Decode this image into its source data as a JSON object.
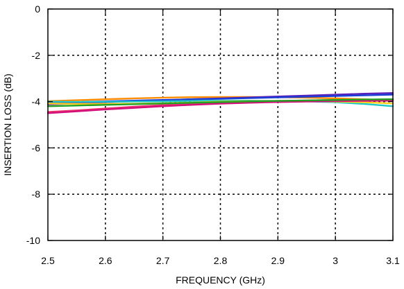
{
  "chart_data": {
    "type": "line",
    "title": "",
    "xlabel": "FREQUENCY (GHz)",
    "ylabel": "INSERTION LOSS  (dB)",
    "xlim": [
      2.5,
      3.1
    ],
    "ylim": [
      -10,
      0
    ],
    "x_ticks": [
      2.5,
      2.6,
      2.7,
      2.8,
      2.9,
      3.0,
      3.1
    ],
    "x_tick_labels": [
      "2.5",
      "2.6",
      "2.7",
      "2.8",
      "2.9",
      "3",
      "3.1"
    ],
    "y_ticks": [
      0,
      -2,
      -4,
      -6,
      -8,
      -10
    ],
    "y_tick_labels": [
      "0",
      "-2",
      "-4",
      "-6",
      "-8",
      "-10"
    ],
    "grid": true,
    "legend": "none",
    "x": [
      2.5,
      2.55,
      2.6,
      2.65,
      2.7,
      2.75,
      2.8,
      2.85,
      2.9,
      2.95,
      3.0,
      3.05,
      3.1
    ],
    "series": [
      {
        "color": "#ff8c00",
        "values": [
          -3.98,
          -3.94,
          -3.9,
          -3.86,
          -3.83,
          -3.81,
          -3.8,
          -3.8,
          -3.81,
          -3.83,
          -3.86,
          -3.9,
          -3.95
        ]
      },
      {
        "color": "#5a1fb8",
        "values": [
          -4.12,
          -4.08,
          -4.03,
          -3.98,
          -3.94,
          -3.9,
          -3.86,
          -3.82,
          -3.78,
          -3.74,
          -3.7,
          -3.66,
          -3.63
        ]
      },
      {
        "color": "#1a3fd6",
        "values": [
          -4.05,
          -4.02,
          -3.99,
          -3.96,
          -3.93,
          -3.9,
          -3.88,
          -3.85,
          -3.82,
          -3.79,
          -3.76,
          -3.73,
          -3.7
        ]
      },
      {
        "color": "#1ec8c8",
        "values": [
          -4.0,
          -4.01,
          -4.01,
          -4.0,
          -3.99,
          -3.97,
          -3.96,
          -3.96,
          -3.97,
          -3.99,
          -4.03,
          -4.1,
          -4.2
        ]
      },
      {
        "color": "#ffd21a",
        "values": [
          -4.08,
          -4.1,
          -4.1,
          -4.09,
          -4.07,
          -4.04,
          -4.0,
          -3.98,
          -3.97,
          -3.98,
          -4.0,
          -4.03,
          -4.08
        ]
      },
      {
        "color": "#e8336b",
        "values": [
          -4.45,
          -4.38,
          -4.3,
          -4.22,
          -4.15,
          -4.09,
          -4.04,
          -4.0,
          -3.97,
          -3.95,
          -3.93,
          -3.92,
          -3.9
        ]
      },
      {
        "color": "#d4107a",
        "values": [
          -4.5,
          -4.42,
          -4.34,
          -4.27,
          -4.2,
          -4.14,
          -4.09,
          -4.05,
          -4.02,
          -4.0,
          -3.98,
          -3.97,
          -3.96
        ]
      },
      {
        "color": "#22a022",
        "values": [
          -4.2,
          -4.17,
          -4.14,
          -4.11,
          -4.08,
          -4.05,
          -4.02,
          -3.99,
          -3.97,
          -3.95,
          -3.93,
          -3.91,
          -3.9
        ]
      }
    ]
  }
}
